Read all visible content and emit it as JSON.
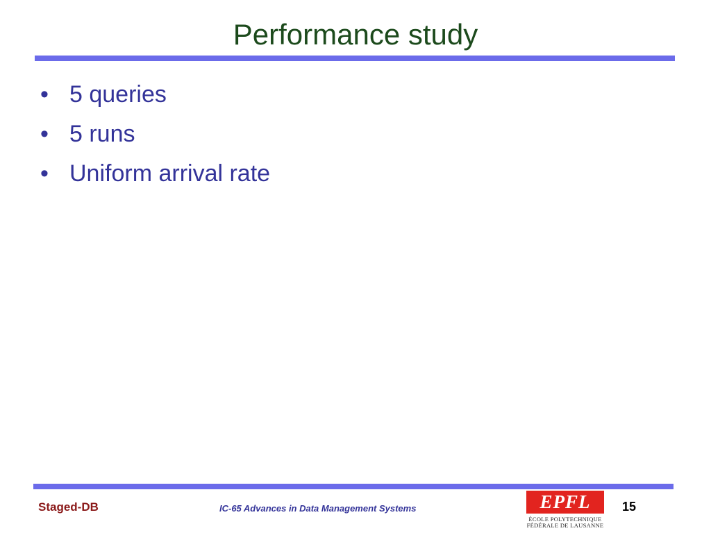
{
  "header": {
    "title": "Performance study"
  },
  "bullets": [
    "5 queries",
    "5 runs",
    "Uniform arrival rate"
  ],
  "footer": {
    "left": "Staged-DB",
    "center": "IC-65 Advances in Data Management Systems",
    "page": "15",
    "logo": {
      "mark": "EPFL",
      "line1": "ÉCOLE POLYTECHNIQUE",
      "line2": "FÉDÉRALE DE LAUSANNE"
    }
  }
}
